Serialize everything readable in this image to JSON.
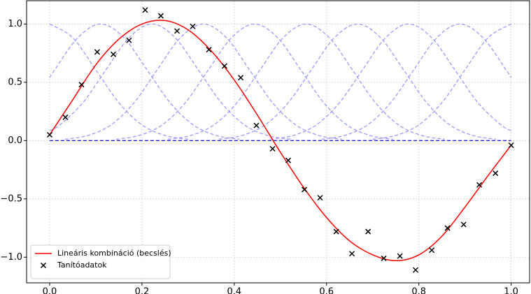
{
  "chart_data": {
    "type": "line",
    "xlim": [
      -0.05,
      1.04
    ],
    "ylim": [
      -1.22,
      1.2
    ],
    "xticks": [
      {
        "value": 0,
        "label": "0.0"
      },
      {
        "value": 0.2,
        "label": "0.2"
      },
      {
        "value": 0.4,
        "label": "0.4"
      },
      {
        "value": 0.6,
        "label": "0.6"
      },
      {
        "value": 0.8,
        "label": "0.8"
      },
      {
        "value": 1,
        "label": "1.0"
      }
    ],
    "yticks": [
      {
        "value": -1,
        "label": "−1.0"
      },
      {
        "value": -0.5,
        "label": "−0.5"
      },
      {
        "value": 0,
        "label": "0.0"
      },
      {
        "value": 0.5,
        "label": "0.5"
      },
      {
        "value": 1,
        "label": "1.0"
      }
    ],
    "grid": true,
    "legend": "lower left",
    "series": [
      {
        "type": "line",
        "dashed": true,
        "color": "#9b9bff",
        "x": [
          0,
          0.05,
          0.1,
          0.15,
          0.2,
          0.25,
          0.3
        ],
        "values": [
          1,
          0.882,
          0.607,
          0.325,
          0.135,
          0.044,
          0.011
        ]
      },
      {
        "type": "line",
        "dashed": true,
        "color": "#9b9bff",
        "x": [
          0,
          0.011,
          0.061,
          0.111,
          0.161,
          0.211,
          0.261,
          0.311,
          0.361,
          0.411
        ],
        "values": [
          0.54,
          0.607,
          0.882,
          1,
          0.882,
          0.607,
          0.325,
          0.135,
          0.044,
          0.011
        ]
      },
      {
        "type": "line",
        "dashed": true,
        "color": "#9b9bff",
        "x": [
          0,
          0.022,
          0.072,
          0.122,
          0.172,
          0.222,
          0.272,
          0.322,
          0.372,
          0.422,
          0.472,
          0.522
        ],
        "values": [
          0.085,
          0.135,
          0.325,
          0.607,
          0.882,
          1,
          0.882,
          0.607,
          0.325,
          0.135,
          0.044,
          0.011
        ]
      },
      {
        "type": "line",
        "dashed": true,
        "color": "#9b9bff",
        "x": [
          0.033,
          0.083,
          0.133,
          0.183,
          0.233,
          0.283,
          0.333,
          0.383,
          0.433,
          0.483,
          0.533,
          0.583,
          0.633
        ],
        "values": [
          0.011,
          0.044,
          0.135,
          0.325,
          0.607,
          0.882,
          1,
          0.882,
          0.607,
          0.325,
          0.135,
          0.044,
          0.011
        ]
      },
      {
        "type": "line",
        "dashed": true,
        "color": "#9b9bff",
        "x": [
          0.144,
          0.194,
          0.244,
          0.294,
          0.344,
          0.394,
          0.444,
          0.494,
          0.544,
          0.594,
          0.644,
          0.694,
          0.744
        ],
        "values": [
          0.011,
          0.044,
          0.135,
          0.325,
          0.607,
          0.882,
          1,
          0.882,
          0.607,
          0.325,
          0.135,
          0.044,
          0.011
        ]
      },
      {
        "type": "line",
        "dashed": true,
        "color": "#9b9bff",
        "x": [
          0.256,
          0.306,
          0.356,
          0.406,
          0.456,
          0.506,
          0.556,
          0.606,
          0.656,
          0.706,
          0.756,
          0.806,
          0.856
        ],
        "values": [
          0.011,
          0.044,
          0.135,
          0.325,
          0.607,
          0.882,
          1,
          0.882,
          0.607,
          0.325,
          0.135,
          0.044,
          0.011
        ]
      },
      {
        "type": "line",
        "dashed": true,
        "color": "#9b9bff",
        "x": [
          0.367,
          0.417,
          0.467,
          0.517,
          0.567,
          0.617,
          0.667,
          0.717,
          0.767,
          0.817,
          0.867,
          0.917,
          0.967
        ],
        "values": [
          0.011,
          0.044,
          0.135,
          0.325,
          0.607,
          0.882,
          1,
          0.882,
          0.607,
          0.325,
          0.135,
          0.044,
          0.011
        ]
      },
      {
        "type": "line",
        "dashed": true,
        "color": "#9b9bff",
        "x": [
          0.478,
          0.528,
          0.578,
          0.628,
          0.678,
          0.728,
          0.778,
          0.828,
          0.878,
          0.928,
          0.978,
          1
        ],
        "values": [
          0.011,
          0.044,
          0.135,
          0.325,
          0.607,
          0.882,
          1,
          0.882,
          0.607,
          0.325,
          0.135,
          0.085
        ]
      },
      {
        "type": "line",
        "dashed": true,
        "color": "#9b9bff",
        "x": [
          0.589,
          0.639,
          0.689,
          0.739,
          0.789,
          0.839,
          0.889,
          0.939,
          0.989,
          1
        ],
        "values": [
          0.011,
          0.044,
          0.135,
          0.325,
          0.607,
          0.882,
          1,
          0.882,
          0.607,
          0.54
        ]
      },
      {
        "type": "line",
        "dashed": true,
        "color": "#9b9bff",
        "x": [
          0.7,
          0.75,
          0.8,
          0.85,
          0.9,
          0.95,
          1
        ],
        "values": [
          0.011,
          0.044,
          0.135,
          0.325,
          0.607,
          0.882,
          1
        ]
      },
      {
        "type": "line",
        "dashed": true,
        "color": "#2626d9",
        "x": [
          0,
          1
        ],
        "values": [
          0,
          0
        ]
      },
      {
        "name": "Lineáris kombináció (becslés)",
        "type": "line",
        "color": "#ff0000",
        "x": [
          0,
          0.05,
          0.1,
          0.15,
          0.2,
          0.25,
          0.3,
          0.35,
          0.4,
          0.45,
          0.5,
          0.55,
          0.6,
          0.65,
          0.7,
          0.75,
          0.8,
          0.85,
          0.9,
          0.95,
          1
        ],
        "values": [
          0.05,
          0.35,
          0.65,
          0.87,
          1.0,
          1.03,
          0.95,
          0.77,
          0.52,
          0.22,
          -0.1,
          -0.4,
          -0.66,
          -0.86,
          -0.98,
          -1.03,
          -0.98,
          -0.82,
          -0.57,
          -0.3,
          -0.04
        ]
      },
      {
        "name": "Tanítóadatok",
        "type": "scatter",
        "color": "#000000",
        "x": [
          0,
          0.034,
          0.069,
          0.103,
          0.138,
          0.172,
          0.207,
          0.241,
          0.276,
          0.31,
          0.345,
          0.379,
          0.414,
          0.448,
          0.483,
          0.517,
          0.552,
          0.586,
          0.621,
          0.655,
          0.69,
          0.724,
          0.759,
          0.793,
          0.828,
          0.862,
          0.897,
          0.931,
          0.966,
          1
        ],
        "values": [
          0.05,
          0.2,
          0.48,
          0.76,
          0.74,
          0.86,
          1.12,
          1.07,
          0.94,
          0.98,
          0.78,
          0.64,
          0.54,
          0.13,
          -0.07,
          -0.17,
          -0.42,
          -0.49,
          -0.78,
          -0.97,
          -0.78,
          -1.01,
          -0.99,
          -1.11,
          -0.94,
          -0.75,
          -0.72,
          -0.38,
          -0.28,
          -0.04
        ]
      }
    ]
  }
}
